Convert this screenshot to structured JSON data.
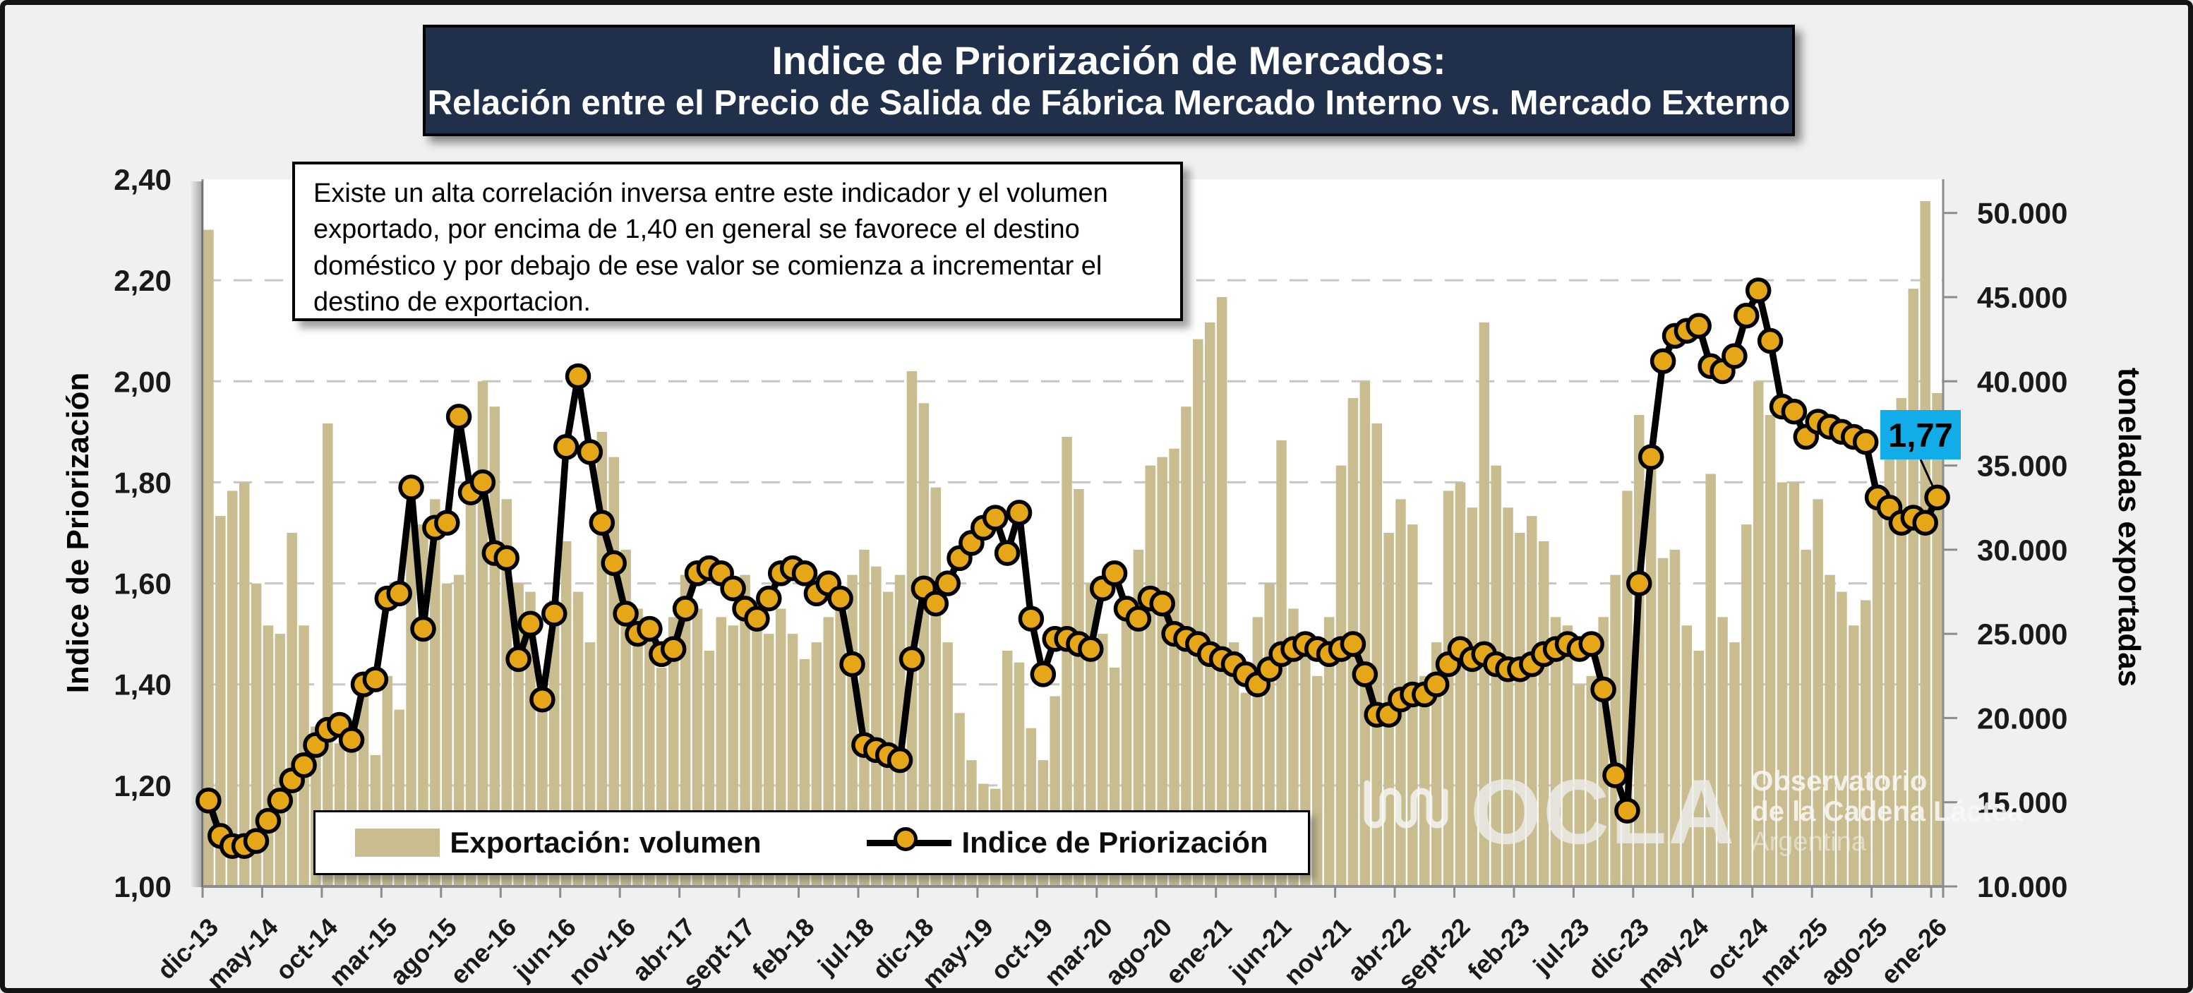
{
  "title": {
    "line1": "Indice de Priorización de Mercados:",
    "line2": "Relación  entre el Precio de Salida de Fábrica Mercado Interno vs. Mercado Externo"
  },
  "annotation": {
    "text": "Existe un alta correlación inversa entre este indicador y el volumen exportado, por encima de 1,40 en general se favorece el destino doméstico y por debajo de ese valor se comienza a incrementar el destino de exportacion."
  },
  "legend": {
    "bars_label": "Exportación: volumen",
    "line_label": "Indice de Priorización"
  },
  "callout": {
    "value": "1,77"
  },
  "watermark": {
    "acronym": "OCLA",
    "line1": "Observatorio",
    "line2": "de la Cadena Láctea",
    "line3": "Argentina"
  },
  "colors": {
    "bar_fill": "#C9BD90",
    "line_stroke": "#000000",
    "marker_fill": "#E5A617",
    "callout_bg": "#12ADE9",
    "title_bg": "#20304A",
    "grid": "#C6C6C6",
    "axis": "#8C8C8C",
    "outer_bg": "#F0F0F0"
  },
  "chart_data": {
    "type": "combo",
    "n_points": 146,
    "x_first": "dic-13",
    "x_last": "ene-26",
    "x_tick_interval": 5,
    "x_tick_labels": [
      "dic-13",
      "may-14",
      "oct-14",
      "mar-15",
      "ago-15",
      "ene-16",
      "jun-16",
      "nov-16",
      "abr-17",
      "sept-17",
      "feb-18",
      "jul-18",
      "dic-18",
      "may-19",
      "oct-19",
      "mar-20",
      "ago-20",
      "ene-21",
      "jun-21",
      "nov-21",
      "abr-22",
      "sept-22",
      "feb-23",
      "jul-23",
      "dic-23",
      "may-24",
      "oct-24",
      "mar-25",
      "ago-25",
      "ene-26"
    ],
    "y_left": {
      "label": "Indice de Priorización",
      "min": 1.0,
      "max": 2.4,
      "tick_labels": [
        "1,00",
        "1,20",
        "1,40",
        "1,60",
        "1,80",
        "2,00",
        "2,20",
        "2,40"
      ],
      "tick_values": [
        1.0,
        1.2,
        1.4,
        1.6,
        1.8,
        2.0,
        2.2,
        2.4
      ]
    },
    "y_right": {
      "label": "toneladas exportadas",
      "min": 10000,
      "max": 52000,
      "tick_labels": [
        "10.000",
        "15.000",
        "20.000",
        "25.000",
        "30.000",
        "35.000",
        "40.000",
        "45.000",
        "50.000"
      ],
      "tick_values": [
        10000,
        15000,
        20000,
        25000,
        30000,
        35000,
        40000,
        45000,
        50000
      ]
    },
    "grid": "horizontal-dashed",
    "legend_position": "bottom-inside",
    "annotation_last_point": {
      "index": 145,
      "label": "1,77",
      "value": 1.77
    },
    "series": [
      {
        "name": "Exportación: volumen",
        "type": "bar",
        "axis": "right",
        "values": [
          49000,
          32000,
          33500,
          34000,
          28000,
          25500,
          25000,
          31000,
          25500,
          19500,
          37500,
          18500,
          19000,
          22500,
          17800,
          22500,
          20500,
          31500,
          31500,
          33000,
          28000,
          28500,
          33000,
          40000,
          38500,
          33000,
          28000,
          27500,
          21000,
          27000,
          30500,
          27500,
          24500,
          37000,
          35500,
          30000,
          26500,
          25500,
          23000,
          26000,
          28500,
          26500,
          24000,
          26000,
          25500,
          28500,
          27000,
          25000,
          26500,
          25000,
          23500,
          24500,
          26000,
          27500,
          28500,
          30000,
          29000,
          27500,
          28500,
          40600,
          38700,
          33700,
          24500,
          20300,
          17500,
          16100,
          15800,
          24000,
          23300,
          19400,
          17500,
          21300,
          36700,
          33600,
          28000,
          25000,
          23000,
          27000,
          30000,
          35000,
          35500,
          36000,
          38500,
          42500,
          43500,
          45000,
          24500,
          21500,
          26000,
          28000,
          36500,
          26500,
          24500,
          22500,
          26000,
          35000,
          39000,
          40000,
          37500,
          31000,
          33000,
          31500,
          22500,
          24500,
          33500,
          34000,
          32500,
          43500,
          35000,
          32500,
          31000,
          32000,
          30500,
          26000,
          25500,
          22000,
          22500,
          26000,
          28500,
          33500,
          38000,
          35000,
          29500,
          30000,
          25500,
          24000,
          34500,
          26000,
          24500,
          31500,
          40000,
          38000,
          34000,
          34000,
          30000,
          33000,
          28500,
          27500,
          25500,
          27000,
          33000,
          36000,
          39000,
          45500,
          50700,
          39300
        ]
      },
      {
        "name": "Indice de Priorización",
        "type": "line",
        "axis": "left",
        "values": [
          1.17,
          1.1,
          1.08,
          1.08,
          1.09,
          1.13,
          1.17,
          1.21,
          1.24,
          1.28,
          1.31,
          1.32,
          1.29,
          1.4,
          1.41,
          1.57,
          1.58,
          1.79,
          1.51,
          1.71,
          1.72,
          1.93,
          1.78,
          1.8,
          1.66,
          1.65,
          1.45,
          1.52,
          1.37,
          1.54,
          1.87,
          2.01,
          1.86,
          1.72,
          1.64,
          1.54,
          1.5,
          1.51,
          1.46,
          1.47,
          1.55,
          1.62,
          1.63,
          1.62,
          1.59,
          1.55,
          1.53,
          1.57,
          1.62,
          1.63,
          1.62,
          1.58,
          1.6,
          1.57,
          1.44,
          1.28,
          1.27,
          1.26,
          1.25,
          1.45,
          1.59,
          1.56,
          1.6,
          1.65,
          1.68,
          1.71,
          1.73,
          1.66,
          1.74,
          1.53,
          1.42,
          1.49,
          1.49,
          1.48,
          1.47,
          1.59,
          1.62,
          1.55,
          1.53,
          1.57,
          1.56,
          1.5,
          1.49,
          1.48,
          1.46,
          1.45,
          1.44,
          1.42,
          1.4,
          1.43,
          1.46,
          1.47,
          1.48,
          1.47,
          1.46,
          1.47,
          1.48,
          1.42,
          1.34,
          1.34,
          1.37,
          1.38,
          1.38,
          1.4,
          1.44,
          1.47,
          1.45,
          1.46,
          1.44,
          1.43,
          1.43,
          1.44,
          1.46,
          1.47,
          1.48,
          1.47,
          1.48,
          1.39,
          1.22,
          1.15,
          1.6,
          1.85,
          2.04,
          2.09,
          2.1,
          2.11,
          2.03,
          2.02,
          2.05,
          2.13,
          2.18,
          2.08,
          1.95,
          1.94,
          1.89,
          1.92,
          1.91,
          1.9,
          1.89,
          1.88,
          1.77,
          1.75,
          1.72,
          1.73,
          1.72,
          1.77
        ]
      }
    ]
  }
}
